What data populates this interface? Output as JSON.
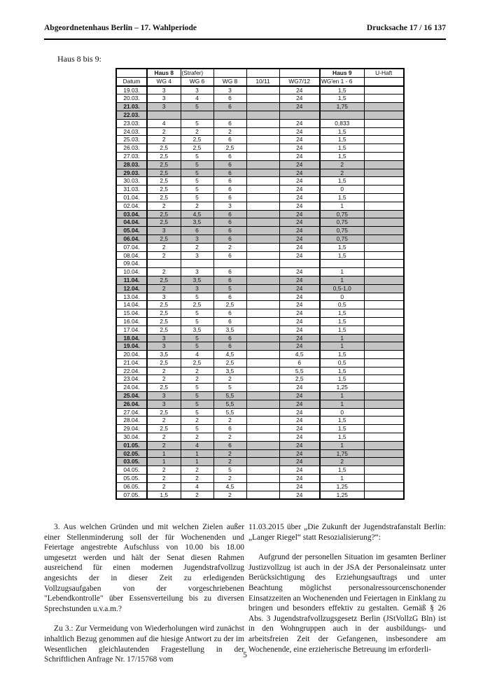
{
  "page": {
    "header_left": "Abgeordnetenhaus Berlin – 17. Wahlperiode",
    "header_right": "Drucksache 17 / 16 137",
    "section_label": "Haus 8 bis 9:",
    "page_number": "5"
  },
  "colors": {
    "row_shade": "#c4c4c4",
    "border": "#000000"
  },
  "table": {
    "group_headers": [
      "",
      "Haus 8",
      "(Strafer)",
      "",
      "",
      "",
      "Haus 9",
      "U-Haft"
    ],
    "column_headers": [
      "Datum",
      "WG 4",
      "WG 6",
      "WG 8",
      "10/11",
      "WG7/12",
      "WG'en 1 - 6",
      ""
    ],
    "rows": [
      {
        "date": "19.03.",
        "values": [
          "3",
          "3",
          "3",
          "",
          "24",
          "1,5",
          ""
        ],
        "shaded": false
      },
      {
        "date": "20.03.",
        "values": [
          "3",
          "4",
          "6",
          "",
          "24",
          "1,5",
          ""
        ],
        "shaded": false
      },
      {
        "date": "21.03.",
        "values": [
          "3",
          "5",
          "6",
          "",
          "24",
          "1,75",
          ""
        ],
        "shaded": true
      },
      {
        "date": "22.03.",
        "values": [
          "",
          "",
          "",
          "",
          "",
          "",
          ""
        ],
        "shaded": true
      },
      {
        "date": "23.03.",
        "values": [
          "4",
          "5",
          "6",
          "",
          "24",
          "0,833",
          ""
        ],
        "shaded": false
      },
      {
        "date": "24.03.",
        "values": [
          "2",
          "2",
          "2",
          "",
          "24",
          "1,5",
          ""
        ],
        "shaded": false
      },
      {
        "date": "25.03.",
        "values": [
          "2",
          "2,5",
          "6",
          "",
          "24",
          "1,5",
          ""
        ],
        "shaded": false
      },
      {
        "date": "26.03.",
        "values": [
          "2,5",
          "2,5",
          "2,5",
          "",
          "24",
          "1,5",
          ""
        ],
        "shaded": false
      },
      {
        "date": "27.03.",
        "values": [
          "2,5",
          "5",
          "6",
          "",
          "24",
          "1,5",
          ""
        ],
        "shaded": false
      },
      {
        "date": "28.03.",
        "values": [
          "2,5",
          "5",
          "6",
          "",
          "24",
          "2",
          ""
        ],
        "shaded": true
      },
      {
        "date": "29.03.",
        "values": [
          "2,5",
          "5",
          "6",
          "",
          "24",
          "2",
          ""
        ],
        "shaded": true
      },
      {
        "date": "30.03.",
        "values": [
          "2,5",
          "5",
          "6",
          "",
          "24",
          "1,5",
          ""
        ],
        "shaded": false
      },
      {
        "date": "31.03.",
        "values": [
          "2,5",
          "5",
          "6",
          "",
          "24",
          "0",
          ""
        ],
        "shaded": false
      },
      {
        "date": "01.04.",
        "values": [
          "2,5",
          "5",
          "6",
          "",
          "24",
          "1,5",
          ""
        ],
        "shaded": false
      },
      {
        "date": "02.04.",
        "values": [
          "2",
          "2",
          "3",
          "",
          "24",
          "1",
          ""
        ],
        "shaded": false
      },
      {
        "date": "03.04.",
        "values": [
          "2,5",
          "4,5",
          "6",
          "",
          "24",
          "0,75",
          ""
        ],
        "shaded": true
      },
      {
        "date": "04.04.",
        "values": [
          "2,5",
          "3,5",
          "6",
          "",
          "24",
          "0,75",
          ""
        ],
        "shaded": true
      },
      {
        "date": "05.04.",
        "values": [
          "3",
          "6",
          "6",
          "",
          "24",
          "0,75",
          ""
        ],
        "shaded": true
      },
      {
        "date": "06.04.",
        "values": [
          "2,5",
          "3",
          "6",
          "",
          "24",
          "0,75",
          ""
        ],
        "shaded": true
      },
      {
        "date": "07.04.",
        "values": [
          "2",
          "2",
          "2",
          "",
          "24",
          "1,5",
          ""
        ],
        "shaded": false
      },
      {
        "date": "08.04.",
        "values": [
          "2",
          "3",
          "6",
          "",
          "24",
          "1,5",
          ""
        ],
        "shaded": false
      },
      {
        "date": "09.04.",
        "values": [
          "",
          "",
          "",
          "",
          "",
          "",
          ""
        ],
        "shaded": false
      },
      {
        "date": "10.04.",
        "values": [
          "2",
          "3",
          "6",
          "",
          "24",
          "1",
          ""
        ],
        "shaded": false
      },
      {
        "date": "11.04.",
        "values": [
          "2,5",
          "3,5",
          "6",
          "",
          "24",
          "1",
          ""
        ],
        "shaded": true
      },
      {
        "date": "12.04.",
        "values": [
          "2",
          "3",
          "5",
          "",
          "24",
          "0,5-1,0",
          ""
        ],
        "shaded": true
      },
      {
        "date": "13.04.",
        "values": [
          "3",
          "5",
          "6",
          "",
          "24",
          "0",
          ""
        ],
        "shaded": false
      },
      {
        "date": "14.04.",
        "values": [
          "2,5",
          "2,5",
          "2,5",
          "",
          "24",
          "0,5",
          ""
        ],
        "shaded": false
      },
      {
        "date": "15.04.",
        "values": [
          "2,5",
          "5",
          "6",
          "",
          "24",
          "1,5",
          ""
        ],
        "shaded": false
      },
      {
        "date": "16.04.",
        "values": [
          "2,5",
          "5",
          "6",
          "",
          "24",
          "1,5",
          ""
        ],
        "shaded": false
      },
      {
        "date": "17.04.",
        "values": [
          "2,5",
          "3,5",
          "3,5",
          "",
          "24",
          "1,5",
          ""
        ],
        "shaded": false
      },
      {
        "date": "18.04.",
        "values": [
          "3",
          "5",
          "6",
          "",
          "24",
          "1",
          ""
        ],
        "shaded": true
      },
      {
        "date": "19.04.",
        "values": [
          "3",
          "5",
          "6",
          "",
          "24",
          "1",
          ""
        ],
        "shaded": true
      },
      {
        "date": "20.04.",
        "values": [
          "3,5",
          "4",
          "4,5",
          "",
          "4,5",
          "1,5",
          ""
        ],
        "shaded": false
      },
      {
        "date": "21.04.",
        "values": [
          "2,5",
          "2,5",
          "2,5",
          "",
          "6",
          "0,5",
          ""
        ],
        "shaded": false
      },
      {
        "date": "22.04.",
        "values": [
          "2",
          "2",
          "3,5",
          "",
          "5,5",
          "1,5",
          ""
        ],
        "shaded": false
      },
      {
        "date": "23.04.",
        "values": [
          "2",
          "2",
          "2",
          "",
          "2,5",
          "1,5",
          ""
        ],
        "shaded": false
      },
      {
        "date": "24.04.",
        "values": [
          "2,5",
          "5",
          "5",
          "",
          "24",
          "1,25",
          ""
        ],
        "shaded": false
      },
      {
        "date": "25.04.",
        "values": [
          "3",
          "5",
          "5,5",
          "",
          "24",
          "1",
          ""
        ],
        "shaded": true
      },
      {
        "date": "26.04.",
        "values": [
          "3",
          "5",
          "5,5",
          "",
          "24",
          "1",
          ""
        ],
        "shaded": true
      },
      {
        "date": "27.04.",
        "values": [
          "2,5",
          "5",
          "5,5",
          "",
          "24",
          "0",
          ""
        ],
        "shaded": false
      },
      {
        "date": "28.04.",
        "values": [
          "2",
          "2",
          "2",
          "",
          "24",
          "1,5",
          ""
        ],
        "shaded": false
      },
      {
        "date": "29.04.",
        "values": [
          "2,5",
          "5",
          "6",
          "",
          "24",
          "1,5",
          ""
        ],
        "shaded": false
      },
      {
        "date": "30.04.",
        "values": [
          "2",
          "2",
          "2",
          "",
          "24",
          "1,5",
          ""
        ],
        "shaded": false
      },
      {
        "date": "01.05.",
        "values": [
          "2",
          "4",
          "6",
          "",
          "24",
          "1",
          ""
        ],
        "shaded": true
      },
      {
        "date": "02.05.",
        "values": [
          "1",
          "1",
          "2",
          "",
          "24",
          "1,75",
          ""
        ],
        "shaded": true
      },
      {
        "date": "03.05.",
        "values": [
          "1",
          "1",
          "2",
          "",
          "24",
          "2",
          ""
        ],
        "shaded": true
      },
      {
        "date": "04.05.",
        "values": [
          "2",
          "2",
          "5",
          "",
          "24",
          "1,5",
          ""
        ],
        "shaded": false
      },
      {
        "date": "05.05.",
        "values": [
          "2",
          "2",
          "2",
          "",
          "24",
          "1",
          ""
        ],
        "shaded": false
      },
      {
        "date": "06.05.",
        "values": [
          "2",
          "4",
          "4,5",
          "",
          "24",
          "1,25",
          ""
        ],
        "shaded": false
      },
      {
        "date": "07.05.",
        "values": [
          "1,5",
          "2",
          "2",
          "",
          "24",
          "1,25",
          ""
        ],
        "shaded": false
      }
    ]
  },
  "body": {
    "left_paragraphs": [
      "3. Aus welchen Gründen und mit welchen Zielen außer einer Stellenminderung soll der für Wochenenden und Feiertage angestrebte Aufschluss von 10.00 bis 18.00 umgesetzt werden und hält der Senat diesen Rahmen ausreichend für einen modernen Jugendstrafvollzug angesichts der in dieser Zeit zu erledigenden Vollzugsaufgaben von der vorgeschriebenen \"Lebendkontrolle\" über Essensverteilung bis zu diversen Sprechstunden u.v.a.m.?",
      "Zu 3.: Zur Vermeidung von Wiederholungen wird zunächst inhaltlich Bezug genommen auf die hiesige Antwort zu der im Wesentlichen gleichlautenden Fragestellung in der Schriftlichen Anfrage Nr. 17/15768 vom"
    ],
    "right_paragraphs": [
      "11.03.2015 über „Die Zukunft der Jugendstrafanstalt Berlin: „Langer Riegel“ statt Resozialisierung?“:",
      "Aufgrund der personellen Situation im gesamten Berliner Justizvollzug ist auch in der JSA der Personaleinsatz unter Berücksichtigung des Erziehungsauftrags und unter Beachtung möglichst personalressourcenschonender Einsatzzeiten an Wochenenden und Feiertagen in Einklang zu bringen und besonders effektiv zu gestalten. Gemäß § 26 Abs. 3 Jugendstrafvollzugsgesetz Berlin (JStVollzG Bln) ist in den Wohngruppen auch in der ausbildungs- und arbeitsfreien Zeit der Gefangenen, insbesondere am Wochenende, eine erzieherische Betreuung im erforderli-"
    ]
  }
}
